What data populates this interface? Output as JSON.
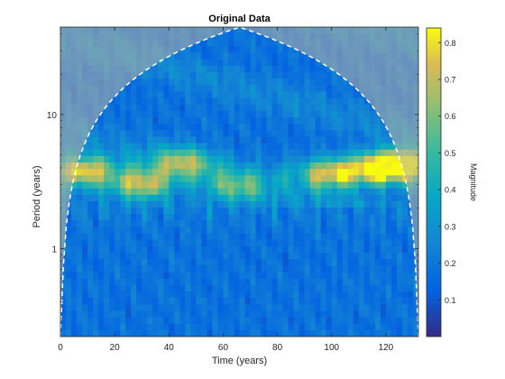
{
  "chart_data": {
    "type": "heatmap",
    "title": "Original Data",
    "xlabel": "Time (years)",
    "ylabel": "Period (years)",
    "xlim": [
      0,
      132
    ],
    "ylim": [
      0.22,
      45
    ],
    "yscale": "log",
    "x_ticks": [
      0,
      20,
      40,
      60,
      80,
      100,
      120
    ],
    "x_tick_labels": [
      "0",
      "20",
      "40",
      "60",
      "80",
      "100",
      "120"
    ],
    "y_ticks": [
      1,
      10
    ],
    "y_tick_labels": [
      "1",
      "10"
    ],
    "colormap": "parula",
    "colorbar": {
      "label": "Magnitude",
      "range": [
        0,
        0.84
      ],
      "ticks": [
        0.1,
        0.2,
        0.3,
        0.4,
        0.5,
        0.6,
        0.7,
        0.8
      ],
      "tick_labels": [
        "0.1",
        "0.2",
        "0.3",
        "0.4",
        "0.5",
        "0.6",
        "0.7",
        "0.8"
      ]
    },
    "high_magnitude_regions": [
      {
        "time": 8,
        "period": 3.8,
        "magnitude": 0.75
      },
      {
        "time": 30,
        "period": 3.0,
        "magnitude": 0.7
      },
      {
        "time": 45,
        "period": 4.5,
        "magnitude": 0.6
      },
      {
        "time": 65,
        "period": 2.8,
        "magnitude": 0.5
      },
      {
        "time": 100,
        "period": 3.6,
        "magnitude": 0.72
      },
      {
        "time": 118,
        "period": 4.0,
        "magnitude": 0.82
      },
      {
        "time": 128,
        "period": 4.3,
        "magnitude": 0.8
      }
    ],
    "cone_of_influence": "white dashed line",
    "grid": false
  }
}
